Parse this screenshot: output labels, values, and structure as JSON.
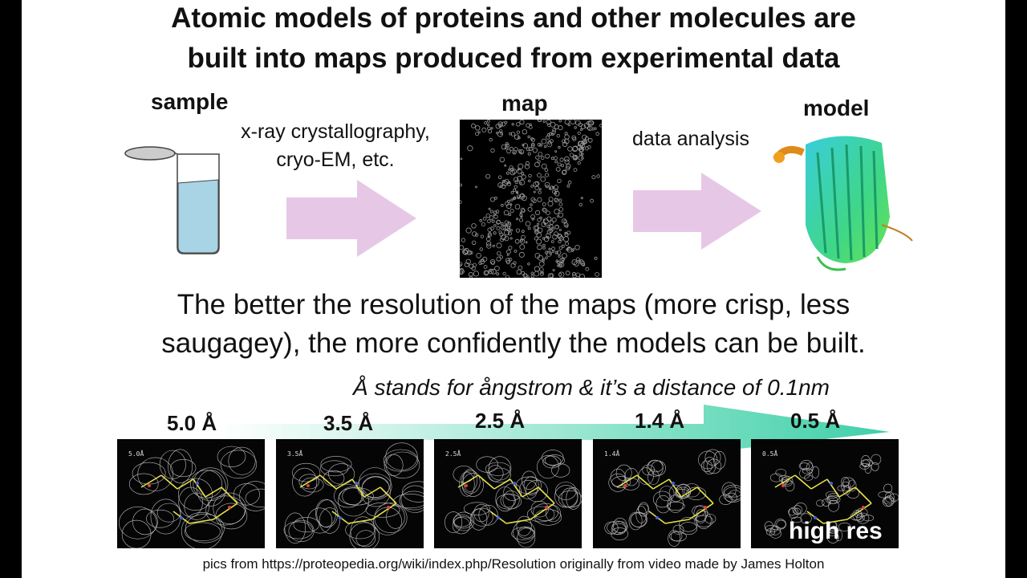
{
  "title_line1": "Atomic models of proteins and other molecules are",
  "title_line2": "built into maps produced from experimental data",
  "sample_label": "sample",
  "map_label": "map",
  "model_label": "model",
  "method_line1": "x-ray crystallography,",
  "method_line2": "cryo-EM, etc.",
  "analysis_label": "data analysis",
  "body_line1": "The better the resolution of the maps (more crisp, less",
  "body_line2": "saugagey), the more confidently the models can be built.",
  "angstrom_note": "Å stands for ångstrom & it’s a distance of 0.1nm",
  "resolutions": [
    {
      "label": "5.0 Å",
      "tag": "5.0Å"
    },
    {
      "label": "3.5 Å",
      "tag": "3.5Å"
    },
    {
      "label": "2.5 Å",
      "tag": "2.5Å"
    },
    {
      "label": "1.4 Å",
      "tag": "1.4Å"
    },
    {
      "label": "0.5 Å",
      "tag": "0.5Å"
    }
  ],
  "high_res_label": "high res",
  "credit": "pics from https://proteopedia.org/wiki/index.php/Resolution originally from video made by James Holton",
  "colors": {
    "arrow": "#e6c8e6",
    "liquid": "#a9d4e6",
    "gradient_arrow": "#3fd0a8"
  }
}
